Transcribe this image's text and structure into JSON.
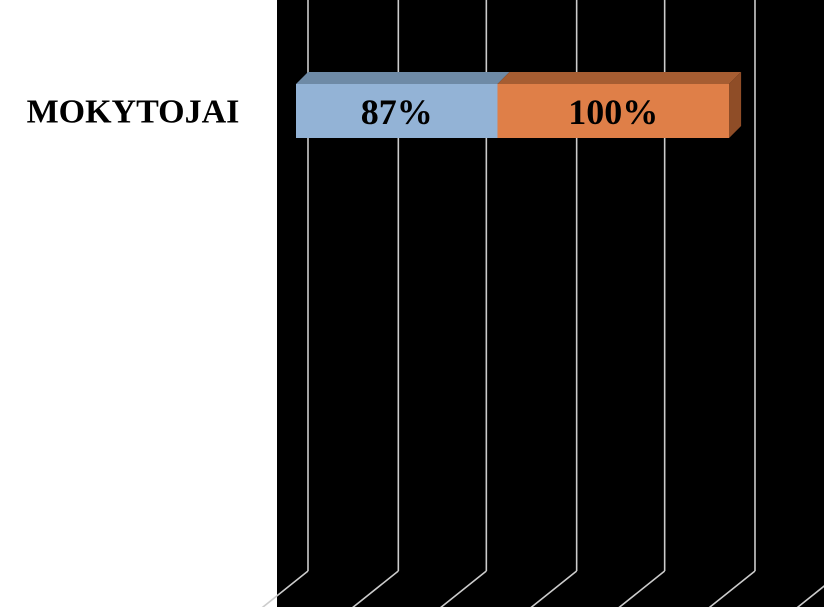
{
  "chart_data": {
    "type": "bar",
    "stacked": true,
    "orientation": "horizontal",
    "three_d": true,
    "categories": [
      "MOKYTOJAI"
    ],
    "series": [
      {
        "values": [
          87
        ],
        "labels": [
          "87%"
        ],
        "color": "#93b3d6",
        "top_color": "#6e8aa6",
        "side_color": "#5b7896"
      },
      {
        "values": [
          100
        ],
        "labels": [
          "100%"
        ],
        "color": "#df7f48",
        "top_color": "#a65d32",
        "side_color": "#8f4d27"
      }
    ],
    "xlim": [
      0,
      231
    ],
    "x_gridline_values": [
      0,
      39,
      77,
      116,
      154,
      193,
      231
    ],
    "grid": true,
    "legend": "none",
    "background": "#000000",
    "gridline_color": "#cccccc",
    "category_label_color": "#000000",
    "data_label_color": "#000000",
    "title": "",
    "xlabel": "",
    "ylabel": ""
  }
}
